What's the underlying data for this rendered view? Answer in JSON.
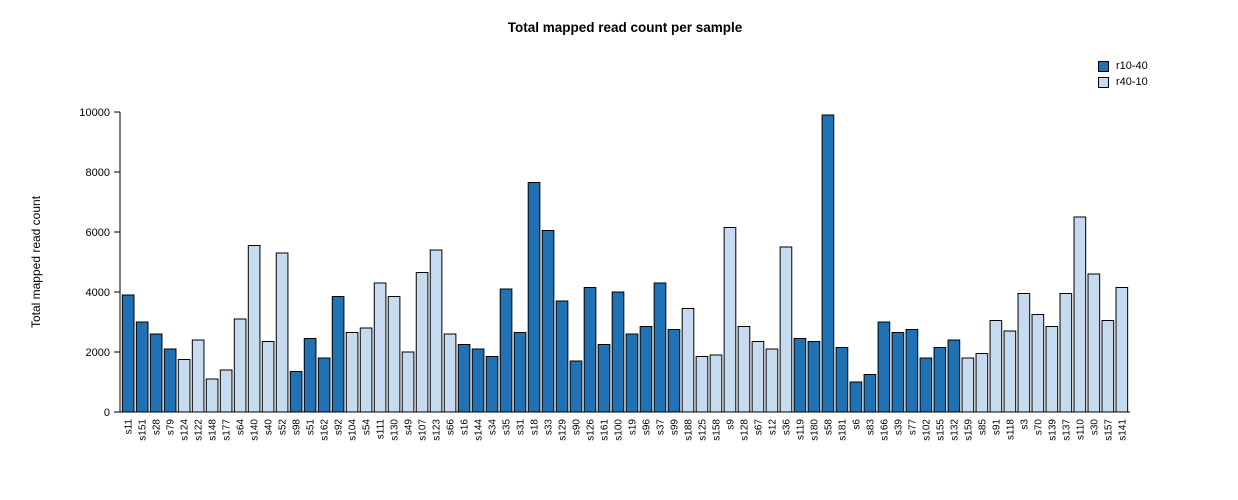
{
  "chart_data": {
    "type": "bar",
    "title": "Total mapped read count per sample",
    "xlabel": "",
    "ylabel": "Total mapped read count",
    "ylim": [
      0,
      10000
    ],
    "yticks": [
      0,
      2000,
      4000,
      6000,
      8000,
      10000
    ],
    "grid": false,
    "legend_position": "top-right",
    "legend": [
      {
        "label": "r10-40",
        "color": "#2171B5"
      },
      {
        "label": "r40-10",
        "color": "#C6DBEF"
      }
    ],
    "bar_border_color": "#000000",
    "bars": [
      {
        "label": "s11",
        "value": 3900,
        "group": "r10-40"
      },
      {
        "label": "s151",
        "value": 3000,
        "group": "r10-40"
      },
      {
        "label": "s28",
        "value": 2600,
        "group": "r10-40"
      },
      {
        "label": "s79",
        "value": 2100,
        "group": "r10-40"
      },
      {
        "label": "s124",
        "value": 1750,
        "group": "r40-10"
      },
      {
        "label": "s122",
        "value": 2400,
        "group": "r40-10"
      },
      {
        "label": "s148",
        "value": 1100,
        "group": "r40-10"
      },
      {
        "label": "s177",
        "value": 1400,
        "group": "r40-10"
      },
      {
        "label": "s64",
        "value": 3100,
        "group": "r40-10"
      },
      {
        "label": "s140",
        "value": 5550,
        "group": "r40-10"
      },
      {
        "label": "s40",
        "value": 2350,
        "group": "r40-10"
      },
      {
        "label": "s52",
        "value": 5300,
        "group": "r40-10"
      },
      {
        "label": "s98",
        "value": 1350,
        "group": "r10-40"
      },
      {
        "label": "s51",
        "value": 2450,
        "group": "r10-40"
      },
      {
        "label": "s162",
        "value": 1800,
        "group": "r10-40"
      },
      {
        "label": "s92",
        "value": 3850,
        "group": "r10-40"
      },
      {
        "label": "s104",
        "value": 2650,
        "group": "r40-10"
      },
      {
        "label": "s54",
        "value": 2800,
        "group": "r40-10"
      },
      {
        "label": "s111",
        "value": 4300,
        "group": "r40-10"
      },
      {
        "label": "s130",
        "value": 3850,
        "group": "r40-10"
      },
      {
        "label": "s49",
        "value": 2000,
        "group": "r40-10"
      },
      {
        "label": "s107",
        "value": 4650,
        "group": "r40-10"
      },
      {
        "label": "s123",
        "value": 5400,
        "group": "r40-10"
      },
      {
        "label": "s66",
        "value": 2600,
        "group": "r40-10"
      },
      {
        "label": "s16",
        "value": 2250,
        "group": "r10-40"
      },
      {
        "label": "s144",
        "value": 2100,
        "group": "r10-40"
      },
      {
        "label": "s34",
        "value": 1850,
        "group": "r10-40"
      },
      {
        "label": "s35",
        "value": 4100,
        "group": "r10-40"
      },
      {
        "label": "s31",
        "value": 2650,
        "group": "r10-40"
      },
      {
        "label": "s18",
        "value": 7650,
        "group": "r10-40"
      },
      {
        "label": "s33",
        "value": 6050,
        "group": "r10-40"
      },
      {
        "label": "s129",
        "value": 3700,
        "group": "r10-40"
      },
      {
        "label": "s90",
        "value": 1700,
        "group": "r10-40"
      },
      {
        "label": "s126",
        "value": 4150,
        "group": "r10-40"
      },
      {
        "label": "s161",
        "value": 2250,
        "group": "r10-40"
      },
      {
        "label": "s100",
        "value": 4000,
        "group": "r10-40"
      },
      {
        "label": "s19",
        "value": 2600,
        "group": "r10-40"
      },
      {
        "label": "s96",
        "value": 2850,
        "group": "r10-40"
      },
      {
        "label": "s37",
        "value": 4300,
        "group": "r10-40"
      },
      {
        "label": "s99",
        "value": 2750,
        "group": "r10-40"
      },
      {
        "label": "s188",
        "value": 3450,
        "group": "r40-10"
      },
      {
        "label": "s125",
        "value": 1850,
        "group": "r40-10"
      },
      {
        "label": "s158",
        "value": 1900,
        "group": "r40-10"
      },
      {
        "label": "s9",
        "value": 6150,
        "group": "r40-10"
      },
      {
        "label": "s128",
        "value": 2850,
        "group": "r40-10"
      },
      {
        "label": "s67",
        "value": 2350,
        "group": "r40-10"
      },
      {
        "label": "s12",
        "value": 2100,
        "group": "r40-10"
      },
      {
        "label": "s36",
        "value": 5500,
        "group": "r40-10"
      },
      {
        "label": "s119",
        "value": 2450,
        "group": "r10-40"
      },
      {
        "label": "s180",
        "value": 2350,
        "group": "r10-40"
      },
      {
        "label": "s58",
        "value": 9900,
        "group": "r10-40"
      },
      {
        "label": "s181",
        "value": 2150,
        "group": "r10-40"
      },
      {
        "label": "s6",
        "value": 1000,
        "group": "r10-40"
      },
      {
        "label": "s83",
        "value": 1250,
        "group": "r10-40"
      },
      {
        "label": "s166",
        "value": 3000,
        "group": "r10-40"
      },
      {
        "label": "s39",
        "value": 2650,
        "group": "r10-40"
      },
      {
        "label": "s77",
        "value": 2750,
        "group": "r10-40"
      },
      {
        "label": "s102",
        "value": 1800,
        "group": "r10-40"
      },
      {
        "label": "s155",
        "value": 2150,
        "group": "r10-40"
      },
      {
        "label": "s132",
        "value": 2400,
        "group": "r10-40"
      },
      {
        "label": "s159",
        "value": 1800,
        "group": "r40-10"
      },
      {
        "label": "s85",
        "value": 1950,
        "group": "r40-10"
      },
      {
        "label": "s91",
        "value": 3050,
        "group": "r40-10"
      },
      {
        "label": "s118",
        "value": 2700,
        "group": "r40-10"
      },
      {
        "label": "s3",
        "value": 3950,
        "group": "r40-10"
      },
      {
        "label": "s70",
        "value": 3250,
        "group": "r40-10"
      },
      {
        "label": "s139",
        "value": 2850,
        "group": "r40-10"
      },
      {
        "label": "s137",
        "value": 3950,
        "group": "r40-10"
      },
      {
        "label": "s110",
        "value": 6500,
        "group": "r40-10"
      },
      {
        "label": "s30",
        "value": 4600,
        "group": "r40-10"
      },
      {
        "label": "s157",
        "value": 3050,
        "group": "r40-10"
      },
      {
        "label": "s141",
        "value": 4150,
        "group": "r40-10"
      }
    ]
  }
}
